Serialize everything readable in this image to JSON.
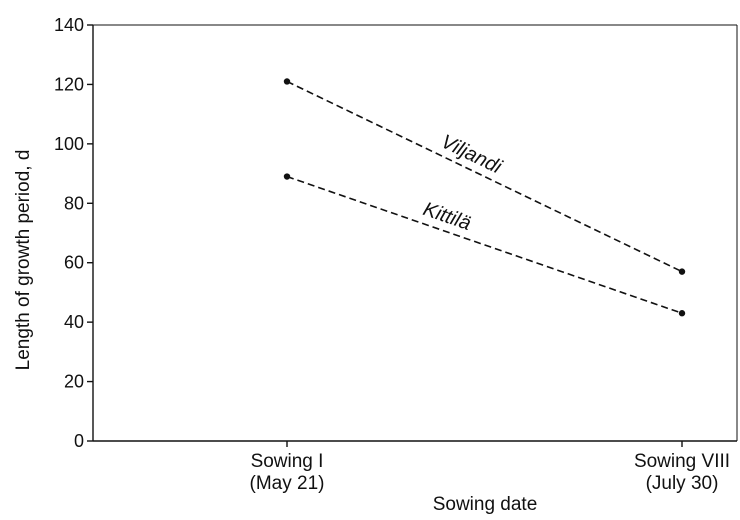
{
  "chart_data": {
    "type": "line",
    "categories": [
      [
        "Sowing I",
        "(May 21)"
      ],
      [
        "Sowing VIII",
        "(July 30)"
      ]
    ],
    "series": [
      {
        "name": "Viljandi",
        "values": [
          121,
          57
        ]
      },
      {
        "name": "Kittilä",
        "values": [
          89,
          43
        ]
      }
    ],
    "xlabel": "Sowing date",
    "ylabel": "Length of growth period, d",
    "ylim": [
      0,
      140
    ],
    "yticks": [
      0,
      20,
      40,
      60,
      80,
      100,
      120,
      140
    ],
    "grid": false,
    "legend": "inline labels on lines",
    "line_style": "dashed",
    "colors": {
      "line": "#111111",
      "axis": "#111111"
    }
  }
}
